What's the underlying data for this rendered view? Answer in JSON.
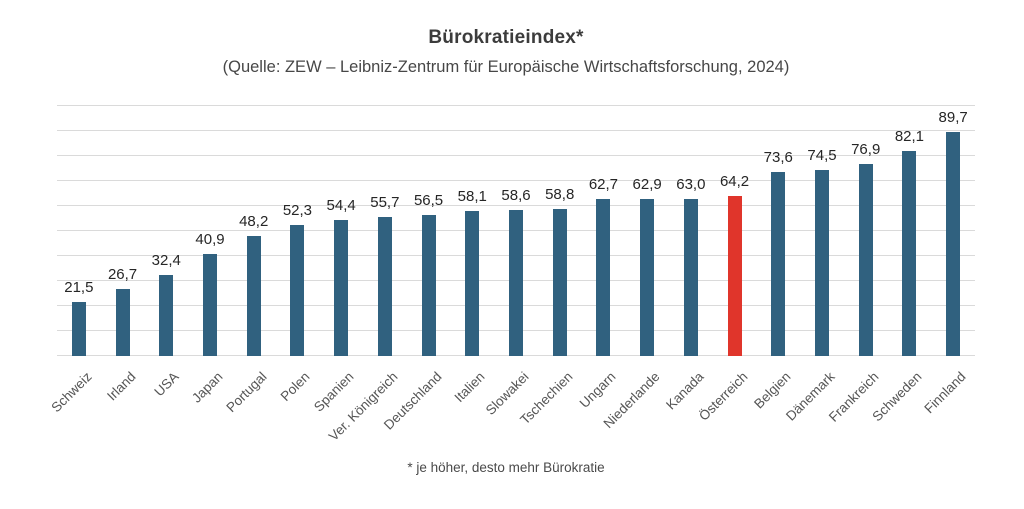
{
  "page": {
    "title": "Bürokratieindex*",
    "subtitle": "(Quelle: ZEW – Leibniz-Zentrum für Europäische Wirtschaftsforschung, 2024)",
    "footnote": "* je höher, desto mehr Bürokratie"
  },
  "chart_data": {
    "type": "bar",
    "title": "Bürokratieindex*",
    "subtitle": "(Quelle: ZEW – Leibniz-Zentrum für Europäische Wirtschaftsforschung, 2024)",
    "footnote": "* je höher, desto mehr Bürokratie",
    "categories": [
      "Schweiz",
      "Irland",
      "USA",
      "Japan",
      "Portugal",
      "Polen",
      "Spanien",
      "Ver. Königreich",
      "Deutschland",
      "Italien",
      "Slowakei",
      "Tschechien",
      "Ungarn",
      "Niederlande",
      "Kanada",
      "Österreich",
      "Belgien",
      "Dänemark",
      "Frankreich",
      "Schweden",
      "Finnland"
    ],
    "values": [
      21.5,
      26.7,
      32.4,
      40.9,
      48.2,
      52.3,
      54.4,
      55.7,
      56.5,
      58.1,
      58.6,
      58.8,
      62.7,
      62.9,
      63.0,
      64.2,
      73.6,
      74.5,
      76.9,
      82.1,
      89.7
    ],
    "value_labels": [
      "21,5",
      "26,7",
      "32,4",
      "40,9",
      "48,2",
      "52,3",
      "54,4",
      "55,7",
      "56,5",
      "58,1",
      "58,6",
      "58,8",
      "62,7",
      "62,9",
      "63,0",
      "64,2",
      "73,6",
      "74,5",
      "76,9",
      "82,1",
      "89,7"
    ],
    "highlight_category": "Österreich",
    "highlight_index": 15,
    "bar_color": "#30617F",
    "highlight_color": "#E0352B",
    "gridline_color": "#DADADA",
    "xlabel": "",
    "ylabel": "",
    "ylim": [
      0,
      100
    ],
    "grid_step": 10,
    "grid": true,
    "legend_position": "none"
  }
}
